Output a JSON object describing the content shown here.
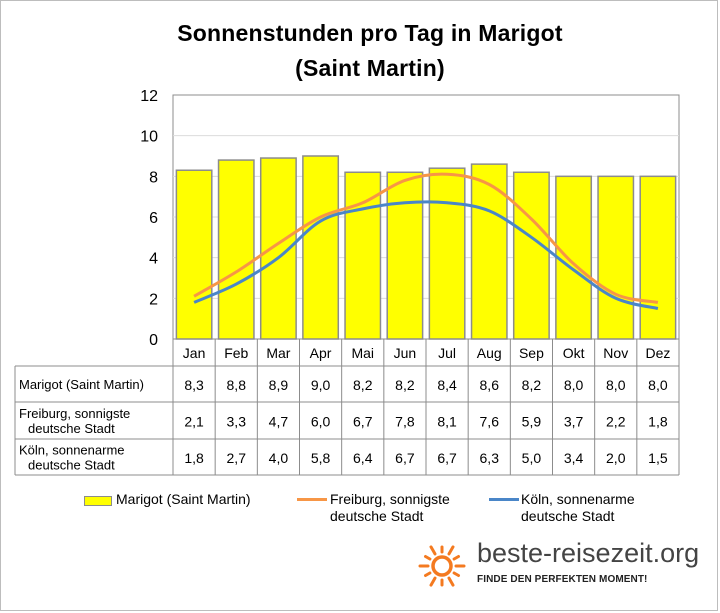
{
  "title_lines": [
    "Sonnenstunden pro Tag in Marigot",
    "(Saint Martin)"
  ],
  "chart_data": {
    "type": "bar",
    "title": "Sonnenstunden pro Tag in Marigot (Saint Martin)",
    "categories": [
      "Jan",
      "Feb",
      "Mar",
      "Apr",
      "Mai",
      "Jun",
      "Jul",
      "Aug",
      "Sep",
      "Okt",
      "Nov",
      "Dez"
    ],
    "ylim": [
      0,
      12
    ],
    "yticks": [
      0,
      2,
      4,
      6,
      8,
      10,
      12
    ],
    "grid": true,
    "legend_position": "bottom",
    "series": [
      {
        "name": "Marigot (Saint Martin)",
        "kind": "bar",
        "color": "#ffff00",
        "table_label": [
          "Marigot (Saint Martin)"
        ],
        "values": [
          8.3,
          8.8,
          8.9,
          9.0,
          8.2,
          8.2,
          8.4,
          8.6,
          8.2,
          8.0,
          8.0,
          8.0
        ],
        "labels": [
          "8,3",
          "8,8",
          "8,9",
          "9,0",
          "8,2",
          "8,2",
          "8,4",
          "8,6",
          "8,2",
          "8,0",
          "8,0",
          "8,0"
        ]
      },
      {
        "name": "Freiburg, sonnigste deutsche Stadt",
        "kind": "line",
        "color": "#f79646",
        "table_label": [
          "Freiburg, sonnigste",
          "deutsche Stadt"
        ],
        "values": [
          2.1,
          3.3,
          4.7,
          6.0,
          6.7,
          7.8,
          8.1,
          7.6,
          5.9,
          3.7,
          2.2,
          1.8
        ],
        "labels": [
          "2,1",
          "3,3",
          "4,7",
          "6,0",
          "6,7",
          "7,8",
          "8,1",
          "7,6",
          "5,9",
          "3,7",
          "2,2",
          "1,8"
        ]
      },
      {
        "name": "Köln, sonnenarme deutsche Stadt",
        "kind": "line",
        "color": "#4a86c8",
        "table_label": [
          "Köln, sonnenarme",
          "deutsche Stadt"
        ],
        "values": [
          1.8,
          2.7,
          4.0,
          5.8,
          6.4,
          6.7,
          6.7,
          6.3,
          5.0,
          3.4,
          2.0,
          1.5
        ],
        "labels": [
          "1,8",
          "2,7",
          "4,0",
          "5,8",
          "6,4",
          "6,7",
          "6,7",
          "6,3",
          "5,0",
          "3,4",
          "2,0",
          "1,5"
        ]
      }
    ]
  },
  "legend": {
    "marigot": "Marigot (Saint Martin)",
    "freiburg_1": "Freiburg, sonnigste",
    "freiburg_2": "deutsche Stadt",
    "koeln_1": "Köln, sonnenarme",
    "koeln_2": "deutsche Stadt"
  },
  "brand": {
    "name": "beste-reisezeit.org",
    "tagline": "FINDE DEN PERFEKTEN MOMENT!",
    "icon": "sun-icon",
    "icon_color": "#f47a20"
  }
}
